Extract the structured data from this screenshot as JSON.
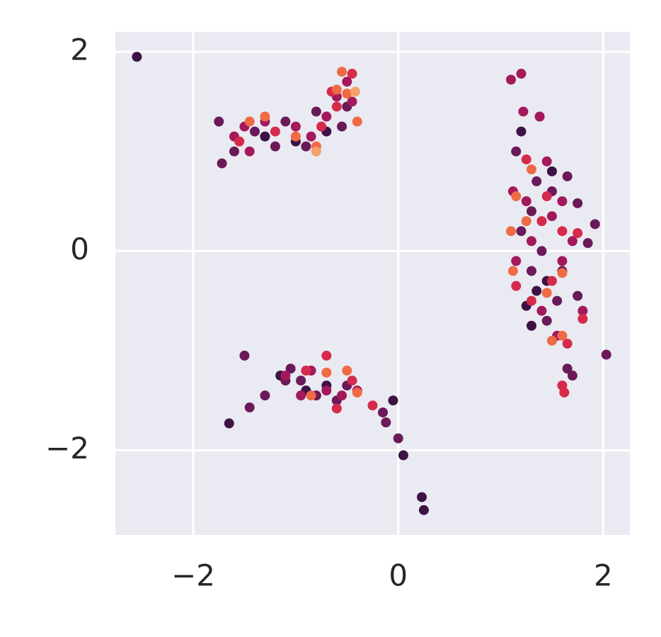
{
  "chart_data": {
    "type": "scatter",
    "grid": true,
    "background": "#eaeaf2",
    "xlim": [
      -2.76,
      2.26
    ],
    "ylim": [
      -2.85,
      2.2
    ],
    "xticks": [
      {
        "value": -2,
        "label": "−2"
      },
      0,
      2
    ],
    "yticks": [
      {
        "value": -2,
        "label": "−2"
      },
      0,
      2
    ],
    "series": [
      {
        "color": "#3d1244",
        "x": [
          -2.55,
          -1.65,
          0.23,
          0.25,
          0.05,
          -0.05,
          -1.15,
          -0.9,
          1.3,
          1.25,
          1.45,
          1.2,
          1.5,
          -1.0,
          -0.7,
          -1.3,
          1.35,
          -0.7
        ],
        "values": [
          1.95,
          -1.73,
          -2.47,
          -2.6,
          -2.05,
          -1.5,
          -1.25,
          -1.4,
          -0.75,
          -0.55,
          -0.3,
          1.2,
          0.8,
          1.1,
          1.2,
          1.15,
          -0.4,
          -1.35
        ]
      },
      {
        "color": "#6a1a58",
        "x": [
          -1.5,
          -1.45,
          -1.3,
          -1.1,
          -0.15,
          -0.12,
          0.0,
          2.03,
          1.65,
          1.7,
          1.92,
          1.85,
          1.75,
          1.65,
          1.15,
          1.3,
          1.4,
          1.55,
          1.75,
          1.5,
          -1.72,
          -1.75,
          -1.6,
          -1.4,
          -1.1,
          -0.8,
          -0.5,
          -0.55,
          -0.9,
          -1.2,
          -0.95,
          -0.8,
          -0.6,
          -0.5,
          -1.05,
          1.2,
          1.35,
          1.45,
          1.6,
          1.3
        ],
        "values": [
          -1.05,
          -1.57,
          -1.45,
          -1.3,
          -1.62,
          -1.72,
          -1.88,
          -1.04,
          -1.18,
          -1.25,
          0.27,
          0.08,
          0.48,
          0.75,
          1.0,
          0.4,
          0.0,
          -0.5,
          -0.45,
          0.6,
          0.88,
          1.3,
          1.0,
          1.2,
          1.3,
          1.4,
          1.45,
          1.25,
          1.05,
          1.05,
          -1.3,
          -1.45,
          -1.5,
          -1.35,
          -1.18,
          0.2,
          0.7,
          -0.7,
          -0.2,
          -0.2
        ]
      },
      {
        "color": "#a3195b",
        "x": [
          1.1,
          1.2,
          1.22,
          1.38,
          1.12,
          1.25,
          1.5,
          1.7,
          1.6,
          1.4,
          1.3,
          1.15,
          1.55,
          1.8,
          1.45,
          -1.5,
          -1.3,
          -1.6,
          -1.45,
          -1.0,
          -0.7,
          -0.6,
          -0.45,
          -0.5,
          -0.85,
          -1.1,
          -0.85,
          -0.7,
          -0.55,
          -0.4,
          -0.95,
          1.6
        ],
        "values": [
          1.72,
          1.78,
          1.4,
          1.35,
          0.6,
          0.5,
          0.35,
          0.1,
          -0.1,
          -0.6,
          0.1,
          -0.1,
          -0.85,
          -0.6,
          0.9,
          1.25,
          1.3,
          1.15,
          1.0,
          1.25,
          1.35,
          1.55,
          1.5,
          1.7,
          1.15,
          -1.25,
          -1.2,
          -1.4,
          -1.45,
          -1.4,
          -1.45,
          0.5
        ]
      },
      {
        "color": "#d52a4c",
        "x": [
          1.6,
          1.62,
          1.65,
          1.8,
          1.75,
          1.15,
          1.25,
          1.5,
          1.6,
          1.4,
          1.3,
          -0.45,
          -0.6,
          -0.75,
          -1.2,
          -1.55,
          -0.65,
          -0.7,
          -0.45,
          -0.25,
          -0.6,
          -0.9,
          1.45
        ],
        "values": [
          -1.35,
          -1.42,
          -0.93,
          -0.68,
          0.18,
          -0.35,
          0.92,
          -0.3,
          0.2,
          0.3,
          -0.5,
          1.78,
          1.45,
          1.25,
          1.2,
          1.1,
          1.6,
          -1.05,
          -1.3,
          -1.55,
          -1.58,
          -1.2,
          0.55
        ]
      },
      {
        "color": "#f06a45",
        "x": [
          1.1,
          1.12,
          1.3,
          1.15,
          1.6,
          1.25,
          1.5,
          1.6,
          -0.55,
          -0.6,
          -0.4,
          -0.8,
          -1.45,
          -1.3,
          -1.0,
          -0.5,
          -0.7,
          -0.4,
          -0.5,
          -0.85,
          1.45
        ],
        "values": [
          0.2,
          -0.2,
          0.82,
          0.55,
          -0.22,
          0.3,
          -0.9,
          -0.85,
          1.8,
          1.62,
          1.3,
          1.05,
          1.3,
          1.35,
          1.15,
          1.58,
          -1.22,
          -1.42,
          -1.2,
          -1.45,
          -0.42
        ]
      },
      {
        "color": "#f4a16b",
        "x": [
          -0.42,
          -0.8
        ],
        "values": [
          1.6,
          1.0
        ]
      }
    ]
  }
}
